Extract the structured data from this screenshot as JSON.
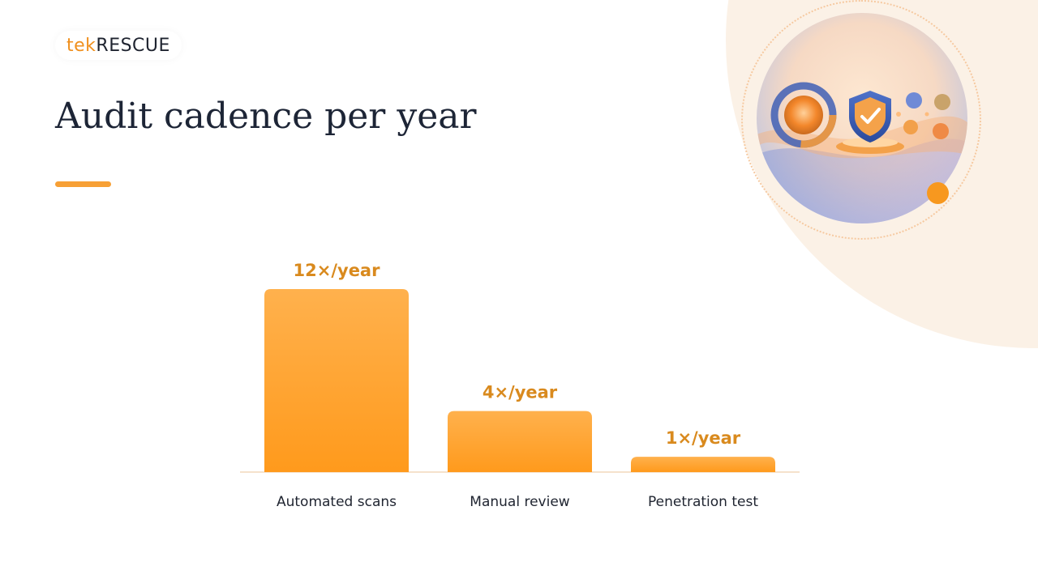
{
  "logo": {
    "part1": "tek",
    "part2": "RESCUE"
  },
  "slide": {
    "title": "Audit cadence per year"
  },
  "hero": {
    "icon": "security-shield-illustration"
  },
  "colors": {
    "accent": "#f7a035",
    "bar_top": "#ffb14d",
    "bar_bottom": "#ff9a1c",
    "value_text": "#d98a1e",
    "title_text": "#1d2536"
  },
  "chart_data": {
    "type": "bar",
    "categories": [
      "Automated scans",
      "Manual review",
      "Penetration test"
    ],
    "values": [
      12,
      4,
      1
    ],
    "value_labels": [
      "12×/year",
      "4×/year",
      "1×/year"
    ],
    "title": "",
    "xlabel": "",
    "ylabel": "",
    "ylim": [
      0,
      12
    ],
    "grid": false,
    "legend": "none"
  }
}
